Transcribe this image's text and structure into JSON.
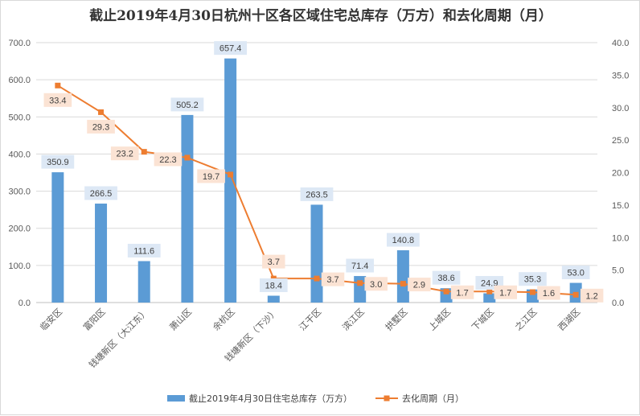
{
  "chart_data": {
    "type": "bar",
    "title": "截止2019年4月30日杭州十区各区域住宅总库存（万方）和去化周期（月）",
    "categories": [
      "临安区",
      "富阳区",
      "钱塘新区（大江东）",
      "萧山区",
      "余杭区",
      "钱塘新区（下沙）",
      "江干区",
      "滨江区",
      "拱墅区",
      "上城区",
      "下城区",
      "之江区",
      "西湖区"
    ],
    "series": [
      {
        "name": "截止2019年4月30日住宅总库存（万方）",
        "type": "bar",
        "axis": "left",
        "color": "#5b9bd5",
        "values": [
          350.9,
          266.5,
          111.6,
          505.2,
          657.4,
          18.4,
          263.5,
          71.4,
          140.8,
          38.6,
          24.9,
          35.3,
          53.0
        ],
        "labels": [
          "350.9",
          "266.5",
          "111.6",
          "505.2",
          "657.4",
          "18.4",
          "263.5",
          "71.4",
          "140.8",
          "38.6",
          "24.9",
          "35.3",
          "53.0"
        ]
      },
      {
        "name": "去化周期（月）",
        "type": "line",
        "axis": "right",
        "color": "#ed7d31",
        "values": [
          33.4,
          29.3,
          23.2,
          22.3,
          19.7,
          3.7,
          3.7,
          3.0,
          2.9,
          1.7,
          1.7,
          1.6,
          1.2
        ],
        "labels": [
          "33.4",
          "29.3",
          "23.2",
          "22.3",
          "19.7",
          "3.7",
          "3.7",
          "3.0",
          "2.9",
          "1.7",
          "1.7",
          "1.6",
          "1.2"
        ]
      }
    ],
    "y_left": {
      "range": [
        0,
        700
      ],
      "ticks": [
        "0.0",
        "100.0",
        "200.0",
        "300.0",
        "400.0",
        "500.0",
        "600.0",
        "700.0"
      ]
    },
    "y_right": {
      "range": [
        0,
        40
      ],
      "ticks": [
        "0.0",
        "5.0",
        "10.0",
        "15.0",
        "20.0",
        "25.0",
        "30.0",
        "35.0",
        "40.0"
      ]
    },
    "grid": true,
    "legend": "bottom",
    "label_background_colors": {
      "bar": "#dde8f5",
      "line": "#fbe3d4"
    }
  }
}
